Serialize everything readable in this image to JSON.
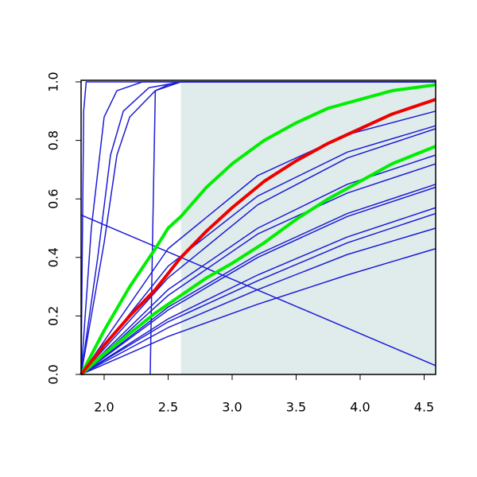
{
  "chart_data": {
    "type": "line",
    "xlim": [
      1.82,
      4.59
    ],
    "ylim": [
      0,
      1
    ],
    "xticks": [
      {
        "value": 2,
        "label": "2.0"
      },
      {
        "value": 2.5,
        "label": "2.5"
      },
      {
        "value": 3,
        "label": "3.0"
      },
      {
        "value": 3.5,
        "label": "3.5"
      },
      {
        "value": 4,
        "label": "4.0"
      },
      {
        "value": 4.5,
        "label": "4.5"
      }
    ],
    "yticks": [
      {
        "value": 0,
        "label": "0.0"
      },
      {
        "value": 0.2,
        "label": "0.2"
      },
      {
        "value": 0.4,
        "label": "0.4"
      },
      {
        "value": 0.6,
        "label": "0.6"
      },
      {
        "value": 0.8,
        "label": "0.8"
      },
      {
        "value": 1,
        "label": "1.0"
      }
    ],
    "shaded_region": {
      "xmin": 2.6,
      "xmax": 4.59,
      "color": "#e0ecec"
    },
    "series": [
      {
        "color": "#1c1cd4",
        "line_width": 1.5,
        "x": [
          1.82,
          1.84,
          1.86,
          4.59
        ],
        "values": [
          0,
          0.9,
          1,
          1
        ]
      },
      {
        "color": "#1c1cd4",
        "line_width": 1.5,
        "x": [
          1.82,
          1.9,
          2.0,
          2.1,
          2.3,
          4.59
        ],
        "values": [
          0,
          0.5,
          0.88,
          0.97,
          1,
          1
        ]
      },
      {
        "color": "#1c1cd4",
        "line_width": 1.5,
        "x": [
          1.82,
          1.95,
          2.05,
          2.15,
          2.35,
          2.6,
          4.59
        ],
        "values": [
          0,
          0.4,
          0.75,
          0.9,
          0.98,
          1,
          1
        ]
      },
      {
        "color": "#1c1cd4",
        "line_width": 1.5,
        "x": [
          1.82,
          2.0,
          2.1,
          2.2,
          2.4,
          2.6,
          4.59
        ],
        "values": [
          0,
          0.45,
          0.75,
          0.88,
          0.97,
          1,
          1
        ]
      },
      {
        "color": "#1c1cd4",
        "line_width": 1.5,
        "x": [
          2.36,
          2.38,
          2.4,
          2.5,
          2.6,
          4.59
        ],
        "values": [
          0,
          0.5,
          0.97,
          0.99,
          1,
          1
        ]
      },
      {
        "color": "#1c1cd4",
        "line_width": 1.5,
        "x": [
          1.82,
          4.59
        ],
        "values": [
          0.545,
          0.03
        ]
      },
      {
        "color": "#1c1cd4",
        "line_width": 1.5,
        "x": [
          1.82,
          2.5,
          3.2,
          3.9,
          4.59
        ],
        "values": [
          0,
          0.43,
          0.68,
          0.82,
          0.9
        ]
      },
      {
        "color": "#1c1cd4",
        "line_width": 1.5,
        "x": [
          1.82,
          2.5,
          3.2,
          3.9,
          4.59
        ],
        "values": [
          0,
          0.37,
          0.61,
          0.76,
          0.85
        ]
      },
      {
        "color": "#1c1cd4",
        "line_width": 1.5,
        "x": [
          1.82,
          2.5,
          3.2,
          3.9,
          4.59
        ],
        "values": [
          0,
          0.33,
          0.58,
          0.74,
          0.84
        ]
      },
      {
        "color": "#1c1cd4",
        "line_width": 1.5,
        "x": [
          1.82,
          2.5,
          3.2,
          3.9,
          4.59
        ],
        "values": [
          0,
          0.29,
          0.5,
          0.65,
          0.75
        ]
      },
      {
        "color": "#1c1cd4",
        "line_width": 1.5,
        "x": [
          1.82,
          2.5,
          3.2,
          3.9,
          4.59
        ],
        "values": [
          0,
          0.27,
          0.48,
          0.62,
          0.72
        ]
      },
      {
        "color": "#1c1cd4",
        "line_width": 1.5,
        "x": [
          1.82,
          2.5,
          3.2,
          3.9,
          4.59
        ],
        "values": [
          0,
          0.23,
          0.41,
          0.55,
          0.65
        ]
      },
      {
        "color": "#1c1cd4",
        "line_width": 1.5,
        "x": [
          1.82,
          2.5,
          3.2,
          3.9,
          4.59
        ],
        "values": [
          0,
          0.22,
          0.4,
          0.54,
          0.64
        ]
      },
      {
        "color": "#1c1cd4",
        "line_width": 1.5,
        "x": [
          1.82,
          2.5,
          3.2,
          3.9,
          4.59
        ],
        "values": [
          0,
          0.19,
          0.34,
          0.47,
          0.57
        ]
      },
      {
        "color": "#1c1cd4",
        "line_width": 1.5,
        "x": [
          1.82,
          2.5,
          3.2,
          3.9,
          4.59
        ],
        "values": [
          0,
          0.18,
          0.32,
          0.45,
          0.55
        ]
      },
      {
        "color": "#1c1cd4",
        "line_width": 1.5,
        "x": [
          1.82,
          2.5,
          3.2,
          3.9,
          4.59
        ],
        "values": [
          0,
          0.16,
          0.29,
          0.41,
          0.5
        ]
      },
      {
        "color": "#1c1cd4",
        "line_width": 1.5,
        "x": [
          1.82,
          2.5,
          3.2,
          3.9,
          4.59
        ],
        "values": [
          0,
          0.13,
          0.24,
          0.34,
          0.43
        ]
      },
      {
        "color": "#00ee00",
        "line_width": 4,
        "x": [
          1.82,
          2.0,
          2.2,
          2.4,
          2.6,
          2.8,
          3.0,
          3.25,
          3.5,
          3.75,
          4.0,
          4.25,
          4.59
        ],
        "values": [
          0,
          0.07,
          0.14,
          0.21,
          0.27,
          0.33,
          0.38,
          0.45,
          0.53,
          0.6,
          0.66,
          0.72,
          0.78
        ]
      },
      {
        "color": "#00ee00",
        "line_width": 4,
        "x": [
          1.82,
          2.0,
          2.2,
          2.4,
          2.5,
          2.6,
          2.8,
          3.0,
          3.25,
          3.5,
          3.75,
          4.0,
          4.25,
          4.59
        ],
        "values": [
          0,
          0.15,
          0.3,
          0.43,
          0.5,
          0.54,
          0.64,
          0.72,
          0.8,
          0.86,
          0.91,
          0.94,
          0.97,
          0.99
        ]
      },
      {
        "color": "#ee0000",
        "line_width": 4,
        "x": [
          1.82,
          2.0,
          2.2,
          2.4,
          2.6,
          2.8,
          3.0,
          3.25,
          3.5,
          3.75,
          4.0,
          4.25,
          4.59
        ],
        "values": [
          0,
          0.1,
          0.2,
          0.29,
          0.4,
          0.49,
          0.57,
          0.66,
          0.73,
          0.79,
          0.84,
          0.89,
          0.94
        ]
      }
    ]
  }
}
